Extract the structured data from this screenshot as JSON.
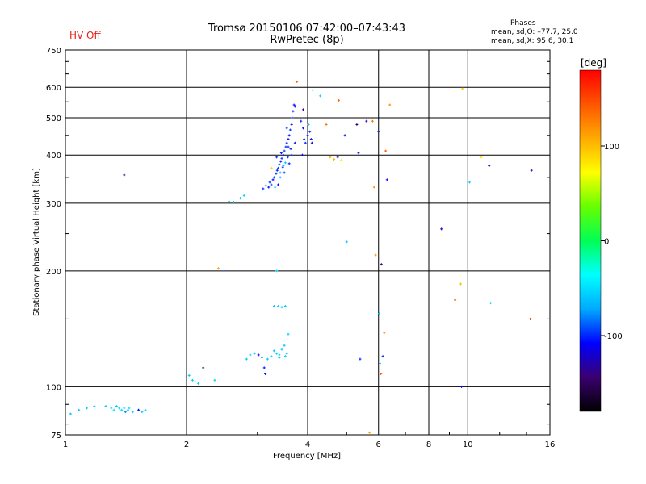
{
  "header": {
    "title_line1": "Tromsø 20150106 07:42:00–07:43:43",
    "title_line2": "RwPretec (8p)",
    "hv_status": "HV Off",
    "phase_title": "Phases",
    "phase_o": "mean, sd,O: –77.7, 25.0",
    "phase_x": "mean, sd,X:  95.6, 30.1"
  },
  "colors": {
    "hv_status": "#e8201a",
    "grid": "#000000",
    "colormap": [
      "#000000",
      "#3a0070",
      "#0000ff",
      "#00aaff",
      "#00ffff",
      "#00ff55",
      "#66ff00",
      "#ffff00",
      "#ffaa00",
      "#ff5500",
      "#ff0000"
    ]
  },
  "chart_data": {
    "type": "scatter",
    "title": "Tromsø 20150106 07:42:00–07:43:43 RwPretec (8p)",
    "xlabel": "Frequency [MHz]",
    "ylabel": "Stationary phase Virtual Height [km]",
    "xscale": "log",
    "yscale": "log",
    "xlim": [
      1,
      16
    ],
    "ylim": [
      75,
      750
    ],
    "x_ticks": [
      1,
      2,
      4,
      6,
      8,
      10,
      16
    ],
    "x_tick_labels": [
      "1",
      "2",
      "4",
      "6",
      "8",
      "10",
      "16"
    ],
    "x_grid": [
      2,
      4,
      6,
      8,
      10
    ],
    "y_ticks": [
      75,
      100,
      200,
      300,
      400,
      500,
      600,
      750
    ],
    "y_tick_labels": [
      "75",
      "100",
      "200",
      "300",
      "400",
      "500",
      "600",
      "750"
    ],
    "y_grid": [
      100,
      200,
      300,
      400,
      500,
      600
    ],
    "colorbar": {
      "label": "[deg]",
      "range": [
        -180,
        180
      ],
      "ticks": [
        100,
        0,
        -100
      ],
      "tick_labels": [
        "100",
        "0",
        "-100"
      ]
    },
    "points": [
      {
        "f": 1.08,
        "h": 87,
        "p": -60
      },
      {
        "f": 1.13,
        "h": 88,
        "p": -60
      },
      {
        "f": 1.18,
        "h": 89,
        "p": -55
      },
      {
        "f": 1.26,
        "h": 89,
        "p": -60
      },
      {
        "f": 1.3,
        "h": 88,
        "p": -55
      },
      {
        "f": 1.32,
        "h": 87,
        "p": -50
      },
      {
        "f": 1.34,
        "h": 89,
        "p": -60
      },
      {
        "f": 1.36,
        "h": 88,
        "p": -45
      },
      {
        "f": 1.38,
        "h": 87,
        "p": -55
      },
      {
        "f": 1.4,
        "h": 88,
        "p": -50
      },
      {
        "f": 1.43,
        "h": 87,
        "p": -60
      },
      {
        "f": 1.47,
        "h": 86,
        "p": -55
      },
      {
        "f": 1.52,
        "h": 87,
        "p": -110
      },
      {
        "f": 1.55,
        "h": 86,
        "p": -60
      },
      {
        "f": 1.58,
        "h": 87,
        "p": -55
      },
      {
        "f": 1.03,
        "h": 85,
        "p": -60
      },
      {
        "f": 1.41,
        "h": 86,
        "p": -80
      },
      {
        "f": 1.44,
        "h": 88,
        "p": -50
      },
      {
        "f": 1.4,
        "h": 355,
        "p": -135
      },
      {
        "f": 2.03,
        "h": 107,
        "p": -60
      },
      {
        "f": 2.07,
        "h": 104,
        "p": -55
      },
      {
        "f": 2.1,
        "h": 103,
        "p": -50
      },
      {
        "f": 2.14,
        "h": 102,
        "p": -60
      },
      {
        "f": 2.2,
        "h": 112,
        "p": -150
      },
      {
        "f": 2.35,
        "h": 104,
        "p": -55
      },
      {
        "f": 2.4,
        "h": 203,
        "p": 110
      },
      {
        "f": 2.48,
        "h": 200,
        "p": -95
      },
      {
        "f": 2.55,
        "h": 303,
        "p": -60
      },
      {
        "f": 2.62,
        "h": 302,
        "p": -55
      },
      {
        "f": 2.72,
        "h": 309,
        "p": -60
      },
      {
        "f": 2.78,
        "h": 314,
        "p": -55
      },
      {
        "f": 2.82,
        "h": 118,
        "p": -60
      },
      {
        "f": 2.88,
        "h": 121,
        "p": -55
      },
      {
        "f": 2.95,
        "h": 122,
        "p": -60
      },
      {
        "f": 3.02,
        "h": 121,
        "p": -110
      },
      {
        "f": 3.08,
        "h": 119,
        "p": -60
      },
      {
        "f": 3.12,
        "h": 112,
        "p": -105
      },
      {
        "f": 3.14,
        "h": 108,
        "p": -105
      },
      {
        "f": 3.18,
        "h": 118,
        "p": -60
      },
      {
        "f": 3.25,
        "h": 120,
        "p": -55
      },
      {
        "f": 3.3,
        "h": 124,
        "p": -60
      },
      {
        "f": 3.35,
        "h": 122,
        "p": -55
      },
      {
        "f": 3.4,
        "h": 121,
        "p": -60
      },
      {
        "f": 3.45,
        "h": 125,
        "p": -55
      },
      {
        "f": 3.5,
        "h": 128,
        "p": -60
      },
      {
        "f": 3.52,
        "h": 120,
        "p": -55
      },
      {
        "f": 3.55,
        "h": 122,
        "p": -60
      },
      {
        "f": 3.58,
        "h": 137,
        "p": -55
      },
      {
        "f": 3.4,
        "h": 119,
        "p": -60
      },
      {
        "f": 3.3,
        "h": 162,
        "p": -60
      },
      {
        "f": 3.38,
        "h": 162,
        "p": -55
      },
      {
        "f": 3.45,
        "h": 161,
        "p": -60
      },
      {
        "f": 3.52,
        "h": 162,
        "p": -55
      },
      {
        "f": 3.35,
        "h": 200,
        "p": -50
      },
      {
        "f": 3.1,
        "h": 327,
        "p": -100
      },
      {
        "f": 3.15,
        "h": 333,
        "p": -95
      },
      {
        "f": 3.2,
        "h": 330,
        "p": -105
      },
      {
        "f": 3.22,
        "h": 340,
        "p": -100
      },
      {
        "f": 3.25,
        "h": 335,
        "p": -90
      },
      {
        "f": 3.28,
        "h": 345,
        "p": -105
      },
      {
        "f": 3.3,
        "h": 350,
        "p": -95
      },
      {
        "f": 3.32,
        "h": 330,
        "p": -60
      },
      {
        "f": 3.34,
        "h": 358,
        "p": -100
      },
      {
        "f": 3.36,
        "h": 365,
        "p": -105
      },
      {
        "f": 3.38,
        "h": 370,
        "p": -95
      },
      {
        "f": 3.4,
        "h": 378,
        "p": -100
      },
      {
        "f": 3.42,
        "h": 360,
        "p": -60
      },
      {
        "f": 3.43,
        "h": 385,
        "p": -105
      },
      {
        "f": 3.45,
        "h": 392,
        "p": -95
      },
      {
        "f": 3.47,
        "h": 372,
        "p": -100
      },
      {
        "f": 3.48,
        "h": 400,
        "p": -105
      },
      {
        "f": 3.5,
        "h": 410,
        "p": -95
      },
      {
        "f": 3.52,
        "h": 382,
        "p": -60
      },
      {
        "f": 3.53,
        "h": 420,
        "p": -100
      },
      {
        "f": 3.55,
        "h": 430,
        "p": -105
      },
      {
        "f": 3.57,
        "h": 395,
        "p": -95
      },
      {
        "f": 3.58,
        "h": 440,
        "p": -100
      },
      {
        "f": 3.6,
        "h": 450,
        "p": -105
      },
      {
        "f": 3.62,
        "h": 465,
        "p": -95
      },
      {
        "f": 3.63,
        "h": 415,
        "p": -100
      },
      {
        "f": 3.65,
        "h": 480,
        "p": -105
      },
      {
        "f": 3.66,
        "h": 500,
        "p": -95
      },
      {
        "f": 3.68,
        "h": 520,
        "p": -100
      },
      {
        "f": 3.7,
        "h": 540,
        "p": -105
      },
      {
        "f": 3.35,
        "h": 395,
        "p": -100
      },
      {
        "f": 3.44,
        "h": 405,
        "p": -105
      },
      {
        "f": 3.5,
        "h": 360,
        "p": -95
      },
      {
        "f": 3.6,
        "h": 380,
        "p": -100
      },
      {
        "f": 3.72,
        "h": 430,
        "p": -105
      },
      {
        "f": 3.55,
        "h": 470,
        "p": -95
      },
      {
        "f": 3.25,
        "h": 370,
        "p": 100
      },
      {
        "f": 3.42,
        "h": 350,
        "p": -60
      },
      {
        "f": 3.65,
        "h": 400,
        "p": -100
      },
      {
        "f": 3.38,
        "h": 335,
        "p": -105
      },
      {
        "f": 3.48,
        "h": 375,
        "p": -60
      },
      {
        "f": 3.58,
        "h": 420,
        "p": -100
      },
      {
        "f": 3.76,
        "h": 620,
        "p": 140
      },
      {
        "f": 3.72,
        "h": 535,
        "p": -120
      },
      {
        "f": 3.9,
        "h": 525,
        "p": -140
      },
      {
        "f": 3.85,
        "h": 490,
        "p": -100
      },
      {
        "f": 3.9,
        "h": 470,
        "p": -105
      },
      {
        "f": 3.92,
        "h": 440,
        "p": -95
      },
      {
        "f": 3.95,
        "h": 430,
        "p": -100
      },
      {
        "f": 4.0,
        "h": 450,
        "p": -105
      },
      {
        "f": 4.02,
        "h": 480,
        "p": -60
      },
      {
        "f": 4.05,
        "h": 460,
        "p": -95
      },
      {
        "f": 4.08,
        "h": 440,
        "p": -100
      },
      {
        "f": 4.1,
        "h": 430,
        "p": -130
      },
      {
        "f": 3.88,
        "h": 400,
        "p": -110
      },
      {
        "f": 4.12,
        "h": 590,
        "p": -60
      },
      {
        "f": 4.3,
        "h": 570,
        "p": -55
      },
      {
        "f": 4.45,
        "h": 480,
        "p": 130
      },
      {
        "f": 4.55,
        "h": 395,
        "p": 110
      },
      {
        "f": 4.65,
        "h": 390,
        "p": 105
      },
      {
        "f": 4.75,
        "h": 395,
        "p": -120
      },
      {
        "f": 4.78,
        "h": 555,
        "p": 140
      },
      {
        "f": 4.85,
        "h": 388,
        "p": 80
      },
      {
        "f": 4.95,
        "h": 450,
        "p": -105
      },
      {
        "f": 5.0,
        "h": 238,
        "p": -60
      },
      {
        "f": 5.3,
        "h": 480,
        "p": -140
      },
      {
        "f": 5.35,
        "h": 405,
        "p": -100
      },
      {
        "f": 5.4,
        "h": 118,
        "p": -100
      },
      {
        "f": 5.6,
        "h": 490,
        "p": -130
      },
      {
        "f": 5.8,
        "h": 490,
        "p": 130
      },
      {
        "f": 5.85,
        "h": 330,
        "p": 120
      },
      {
        "f": 5.9,
        "h": 220,
        "p": 120
      },
      {
        "f": 6.0,
        "h": 460,
        "p": -100
      },
      {
        "f": 6.02,
        "h": 155,
        "p": -60
      },
      {
        "f": 6.05,
        "h": 115,
        "p": -60
      },
      {
        "f": 6.08,
        "h": 108,
        "p": 140
      },
      {
        "f": 6.1,
        "h": 208,
        "p": -150
      },
      {
        "f": 6.15,
        "h": 120,
        "p": -100
      },
      {
        "f": 6.2,
        "h": 138,
        "p": 120
      },
      {
        "f": 6.25,
        "h": 410,
        "p": 140
      },
      {
        "f": 6.3,
        "h": 345,
        "p": -110
      },
      {
        "f": 6.4,
        "h": 540,
        "p": 120
      },
      {
        "f": 5.7,
        "h": 76,
        "p": 110
      },
      {
        "f": 8.6,
        "h": 257,
        "p": -120
      },
      {
        "f": 9.3,
        "h": 168,
        "p": 160
      },
      {
        "f": 9.6,
        "h": 185,
        "p": 100
      },
      {
        "f": 9.65,
        "h": 100,
        "p": -110
      },
      {
        "f": 9.7,
        "h": 595,
        "p": 95
      },
      {
        "f": 10.1,
        "h": 340,
        "p": -60
      },
      {
        "f": 10.8,
        "h": 395,
        "p": 85
      },
      {
        "f": 11.3,
        "h": 375,
        "p": -120
      },
      {
        "f": 11.4,
        "h": 165,
        "p": -55
      },
      {
        "f": 14.4,
        "h": 365,
        "p": -110
      },
      {
        "f": 14.3,
        "h": 150,
        "p": 170
      }
    ]
  }
}
